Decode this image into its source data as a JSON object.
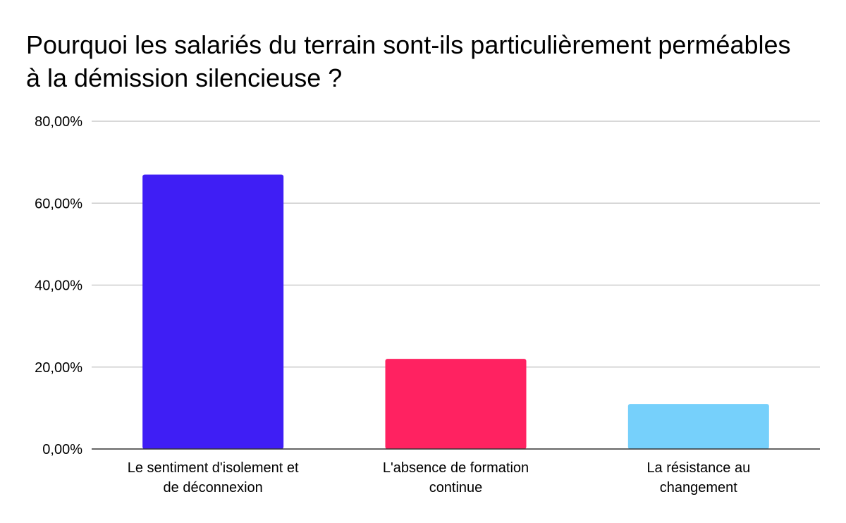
{
  "chart_data": {
    "type": "bar",
    "title": "Pourquoi les salariés du terrain sont-ils particulièrement perméables à la démission silencieuse ?",
    "xlabel": "",
    "ylabel": "",
    "categories": [
      [
        "Le sentiment d'isolement et",
        "de déconnexion"
      ],
      [
        "L'absence de formation",
        "continue"
      ],
      [
        "La résistance au",
        "changement"
      ]
    ],
    "values": [
      67,
      22,
      11
    ],
    "bar_colors": [
      "#3f1ef5",
      "#ff2261",
      "#76d0fb"
    ],
    "ylim": [
      0,
      80
    ],
    "yticks": [
      0,
      20,
      40,
      60,
      80
    ],
    "ytick_labels": [
      "0,00%",
      "20,00%",
      "40,00%",
      "60,00%",
      "80,00%"
    ],
    "grid": true,
    "gridline_color": "#cccccc",
    "baseline_color": "#333333",
    "legend": "none"
  }
}
